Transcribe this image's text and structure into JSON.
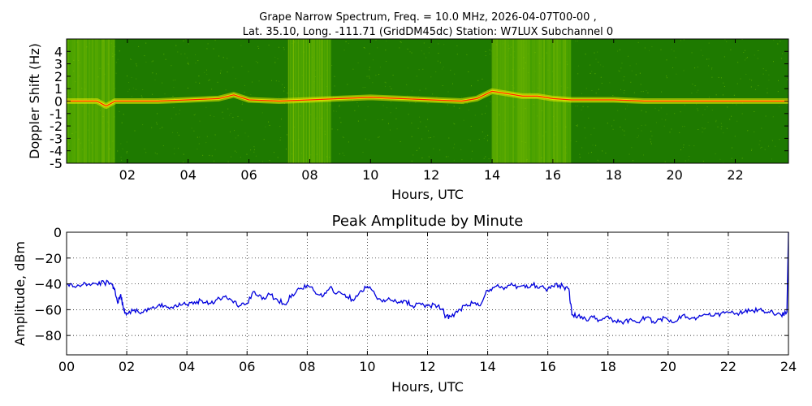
{
  "figure": {
    "title_line1": "Grape Narrow Spectrum, Freq. = 10.0 MHz, 2026-04-07T00-00 ,",
    "title_line2": "Lat.  35.10, Long. -111.71 (GridDM45dc) Station: W7LUX Subchannel 0"
  },
  "chart_data": [
    {
      "type": "heatmap",
      "title": "",
      "xlabel": "Hours, UTC",
      "ylabel": "Doppler Shift (Hz)",
      "xlim": [
        0,
        23.75
      ],
      "ylim": [
        -5,
        5
      ],
      "x_ticks": [
        2,
        4,
        6,
        8,
        10,
        12,
        14,
        16,
        18,
        20,
        22
      ],
      "x_tick_labels": [
        "02",
        "04",
        "06",
        "08",
        "10",
        "12",
        "14",
        "16",
        "18",
        "20",
        "22"
      ],
      "y_ticks": [
        -5,
        -4,
        -3,
        -2,
        -1,
        0,
        1,
        2,
        3,
        4
      ],
      "y_tick_labels": [
        "-5",
        "-4",
        "-3",
        "-2",
        "-1",
        "0",
        "1",
        "2",
        "3",
        "4"
      ],
      "colors": {
        "background": "#1e7a00",
        "signal": "#e8e800",
        "peak": "#ff2000"
      },
      "noisy_bands_hours": [
        [
          0.0,
          1.6
        ],
        [
          7.3,
          8.7
        ],
        [
          14.0,
          16.6
        ]
      ],
      "trace": {
        "x": [
          0,
          0.5,
          1.0,
          1.3,
          1.6,
          2.0,
          3.0,
          4.0,
          5.0,
          5.5,
          6.0,
          7.0,
          8.0,
          9.0,
          10.0,
          11.0,
          12.0,
          13.0,
          13.5,
          14.0,
          14.5,
          15.0,
          15.5,
          16.0,
          16.6,
          17.0,
          18.0,
          19.0,
          20.0,
          21.0,
          22.0,
          23.0,
          23.75
        ],
        "y": [
          0,
          0,
          0,
          -0.4,
          0,
          0,
          0,
          0.1,
          0.2,
          0.5,
          0.1,
          0,
          0.1,
          0.2,
          0.3,
          0.2,
          0.1,
          0,
          0.2,
          0.8,
          0.6,
          0.4,
          0.4,
          0.2,
          0.1,
          0.1,
          0.1,
          0,
          0,
          0,
          0,
          0,
          0
        ]
      }
    },
    {
      "type": "line",
      "title": "Peak Amplitude by Minute",
      "xlabel": "Hours, UTC",
      "ylabel": "Amplitude, dBm",
      "xlim": [
        0,
        24
      ],
      "ylim": [
        -95,
        0
      ],
      "grid": true,
      "line_color": "#0000dd",
      "x_ticks": [
        0,
        2,
        4,
        6,
        8,
        10,
        12,
        14,
        16,
        18,
        20,
        22,
        24
      ],
      "x_tick_labels": [
        "00",
        "02",
        "04",
        "06",
        "08",
        "10",
        "12",
        "14",
        "16",
        "18",
        "20",
        "22",
        "24"
      ],
      "y_ticks": [
        -80,
        -60,
        -40,
        -20,
        0
      ],
      "y_tick_labels": [
        "−80",
        "−60",
        "−40",
        "−20",
        "0"
      ],
      "series": [
        {
          "x": [
            0,
            0.25,
            0.5,
            0.75,
            1.0,
            1.25,
            1.5,
            1.6,
            1.7,
            1.8,
            1.9,
            2.0,
            2.25,
            2.5,
            2.75,
            3.0,
            3.25,
            3.5,
            3.75,
            4.0,
            4.25,
            4.5,
            4.75,
            5.0,
            5.25,
            5.5,
            5.75,
            6.0,
            6.25,
            6.5,
            6.75,
            7.0,
            7.25,
            7.5,
            7.75,
            8.0,
            8.25,
            8.5,
            8.75,
            9.0,
            9.25,
            9.5,
            9.75,
            10.0,
            10.25,
            10.5,
            10.75,
            11.0,
            11.25,
            11.5,
            11.75,
            12.0,
            12.25,
            12.5,
            12.6,
            12.75,
            13.0,
            13.25,
            13.5,
            13.75,
            14.0,
            14.25,
            14.5,
            14.75,
            15.0,
            15.25,
            15.5,
            15.75,
            16.0,
            16.25,
            16.5,
            16.7,
            16.8,
            17.0,
            17.25,
            17.5,
            17.75,
            18.0,
            18.25,
            18.5,
            18.75,
            19.0,
            19.25,
            19.5,
            19.75,
            20.0,
            20.25,
            20.5,
            20.75,
            21.0,
            21.25,
            21.5,
            21.75,
            22.0,
            22.25,
            22.5,
            22.75,
            23.0,
            23.25,
            23.5,
            23.75,
            23.95,
            24.0
          ],
          "y": [
            -40,
            -42,
            -41,
            -40,
            -40,
            -39,
            -40,
            -44,
            -55,
            -48,
            -60,
            -63,
            -60,
            -62,
            -60,
            -58,
            -57,
            -58,
            -55,
            -56,
            -54,
            -53,
            -55,
            -52,
            -50,
            -53,
            -57,
            -55,
            -46,
            -52,
            -48,
            -52,
            -56,
            -48,
            -44,
            -41,
            -46,
            -50,
            -43,
            -47,
            -48,
            -52,
            -46,
            -42,
            -48,
            -54,
            -52,
            -55,
            -53,
            -57,
            -55,
            -57,
            -56,
            -60,
            -66,
            -65,
            -62,
            -57,
            -55,
            -57,
            -45,
            -42,
            -43,
            -41,
            -42,
            -43,
            -41,
            -42,
            -44,
            -40,
            -42,
            -44,
            -64,
            -65,
            -67,
            -66,
            -68,
            -65,
            -69,
            -71,
            -67,
            -70,
            -66,
            -69,
            -67,
            -68,
            -69,
            -64,
            -67,
            -66,
            -64,
            -65,
            -63,
            -62,
            -63,
            -62,
            -61,
            -60,
            -62,
            -63,
            -64,
            -62,
            0
          ]
        }
      ]
    }
  ]
}
